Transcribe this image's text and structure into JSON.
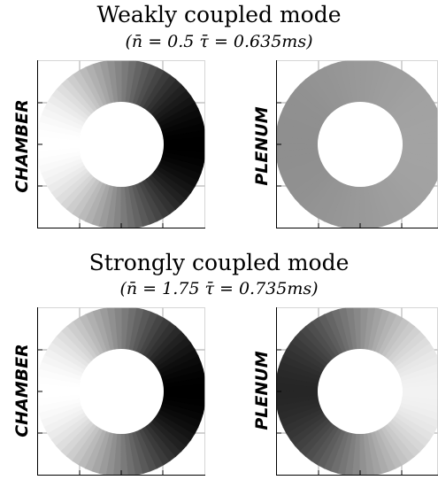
{
  "sections": [
    {
      "title": "Weakly coupled mode",
      "params": "(n̄ = 0.5   τ̄ = 0.635ms)",
      "panels": [
        {
          "label": "CHAMBER",
          "field": {
            "type": "sine",
            "mean": 0.5,
            "amp": 0.5,
            "phase": 180
          }
        },
        {
          "label": "PLENUM",
          "field": {
            "type": "sine",
            "mean": 0.6,
            "amp": 0.04,
            "phase": 0
          }
        }
      ]
    },
    {
      "title": "Strongly coupled mode",
      "params": "(n̄ = 1.75   τ̄ = 0.735ms)",
      "panels": [
        {
          "label": "CHAMBER",
          "field": {
            "type": "sine",
            "mean": 0.5,
            "amp": 0.5,
            "phase": 180
          }
        },
        {
          "label": "PLENUM",
          "field": {
            "type": "sine",
            "mean": 0.55,
            "amp": 0.4,
            "phase": 0
          }
        }
      ]
    }
  ],
  "colors": {
    "black": "#000000",
    "white": "#ffffff",
    "frame": "#000000",
    "grid": "#888888"
  }
}
